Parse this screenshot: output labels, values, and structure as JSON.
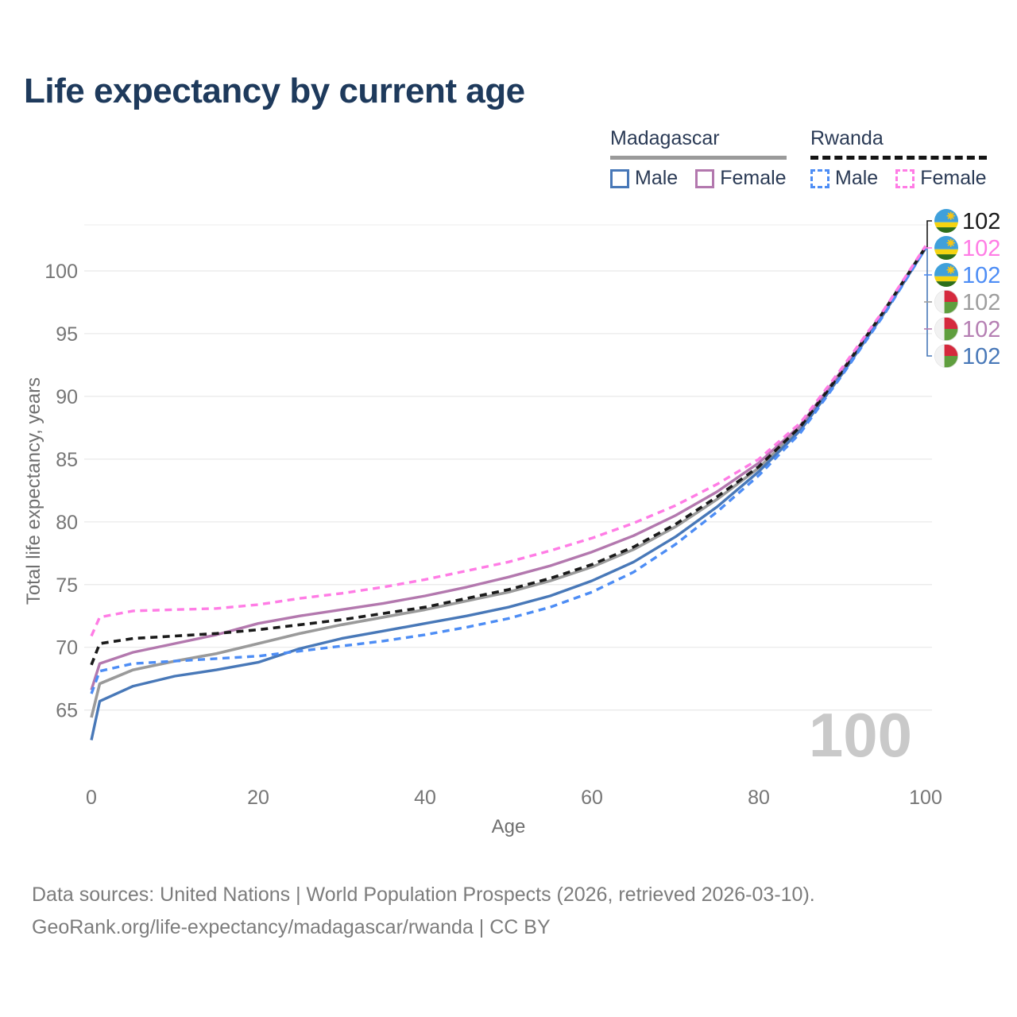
{
  "header": {
    "title": "Life expectancy by current age"
  },
  "legend": {
    "groups": [
      {
        "id": "madagascar",
        "label": "Madagascar",
        "line_style": "solid",
        "underline_color": "#9a9a9a",
        "items": [
          {
            "label": "Male",
            "color": "#4878b8",
            "dash": false
          },
          {
            "label": "Female",
            "color": "#b378ae",
            "dash": false
          }
        ]
      },
      {
        "id": "rwanda",
        "label": "Rwanda",
        "line_style": "dashed",
        "underline_color": "#141414",
        "items": [
          {
            "label": "Male",
            "color": "#4d8df5",
            "dash": true
          },
          {
            "label": "Female",
            "color": "#ff7ce5",
            "dash": true
          }
        ]
      }
    ]
  },
  "chart_data": {
    "type": "line",
    "title": "Life expectancy by current age",
    "xlabel": "Age",
    "ylabel": "Total life expectancy, years",
    "xlim": [
      0,
      100
    ],
    "ylim": [
      62,
      103.5
    ],
    "x_ticks": [
      0,
      20,
      40,
      60,
      80,
      100
    ],
    "y_ticks": [
      65,
      70,
      75,
      80,
      85,
      90,
      95,
      100
    ],
    "grid": "horizontal-only",
    "legend_position": "top-right",
    "age_counter": "100",
    "x": [
      0,
      1,
      5,
      10,
      15,
      20,
      25,
      30,
      35,
      40,
      45,
      50,
      55,
      60,
      65,
      70,
      75,
      80,
      85,
      90,
      95,
      100
    ],
    "series": [
      {
        "name": "Madagascar Total",
        "country": "madagascar",
        "sex": "total",
        "color": "#9a9a9a",
        "dash": false,
        "width": 3.6,
        "values": [
          64.4,
          67.1,
          68.2,
          68.9,
          69.5,
          70.3,
          71.1,
          71.8,
          72.4,
          73.0,
          73.7,
          74.4,
          75.3,
          76.4,
          77.8,
          79.6,
          81.8,
          84.3,
          87.5,
          92.0,
          96.7,
          101.9
        ],
        "end_label": {
          "text": "102",
          "row": 3,
          "label_color": "#9e9e9e"
        }
      },
      {
        "name": "Madagascar Female",
        "country": "madagascar",
        "sex": "female",
        "color": "#b378ae",
        "dash": false,
        "width": 3.4,
        "values": [
          66.6,
          68.7,
          69.6,
          70.3,
          71.0,
          71.9,
          72.5,
          73.0,
          73.5,
          74.1,
          74.8,
          75.6,
          76.5,
          77.6,
          78.9,
          80.5,
          82.4,
          84.7,
          87.7,
          92.1,
          96.8,
          101.9
        ],
        "end_label": {
          "text": "102",
          "row": 4,
          "label_color": "#b57fb3"
        }
      },
      {
        "name": "Madagascar Male",
        "country": "madagascar",
        "sex": "male",
        "color": "#4878b8",
        "dash": false,
        "width": 3.4,
        "values": [
          62.6,
          65.7,
          66.9,
          67.7,
          68.2,
          68.8,
          69.9,
          70.7,
          71.3,
          71.9,
          72.5,
          73.2,
          74.1,
          75.3,
          76.8,
          78.8,
          81.2,
          84.0,
          87.3,
          91.8,
          96.6,
          101.8
        ],
        "end_label": {
          "text": "102",
          "row": 5,
          "label_color": "#4878b8"
        }
      },
      {
        "name": "Rwanda Total",
        "country": "rwanda",
        "sex": "total",
        "color": "#1a1a1a",
        "dash": true,
        "width": 3.6,
        "values": [
          68.6,
          70.3,
          70.7,
          70.9,
          71.1,
          71.4,
          71.8,
          72.2,
          72.7,
          73.2,
          73.9,
          74.6,
          75.5,
          76.6,
          78.0,
          79.8,
          82.0,
          84.4,
          87.6,
          92.0,
          96.8,
          101.9
        ],
        "end_label": {
          "text": "102",
          "row": 0,
          "label_color": "#1a1a1a"
        }
      },
      {
        "name": "Rwanda Male",
        "country": "rwanda",
        "sex": "male",
        "color": "#4d8df5",
        "dash": true,
        "width": 3.4,
        "values": [
          66.3,
          68.1,
          68.7,
          68.9,
          69.1,
          69.3,
          69.7,
          70.1,
          70.5,
          71.0,
          71.6,
          72.3,
          73.2,
          74.4,
          76.0,
          78.2,
          80.8,
          83.7,
          87.1,
          91.7,
          96.5,
          101.8
        ],
        "end_label": {
          "text": "102",
          "row": 2,
          "label_color": "#4d8df5"
        }
      },
      {
        "name": "Rwanda Female",
        "country": "rwanda",
        "sex": "female",
        "color": "#ff7ce5",
        "dash": true,
        "width": 3.4,
        "values": [
          70.9,
          72.4,
          72.9,
          73.0,
          73.1,
          73.4,
          73.9,
          74.3,
          74.8,
          75.4,
          76.1,
          76.8,
          77.7,
          78.7,
          79.9,
          81.3,
          83.0,
          85.0,
          87.9,
          92.3,
          96.9,
          102.0
        ],
        "end_label": {
          "text": "102",
          "row": 1,
          "label_color": "#ff7ce5"
        }
      }
    ],
    "flag_colors": {
      "rwanda": {
        "blue": "#3fa0db",
        "yellow": "#f5d411",
        "green": "#2d6e1a",
        "sun": "#f9c513"
      },
      "madagascar": {
        "white": "#f2f2f2",
        "red": "#d5293d",
        "green": "#5f9e3e"
      }
    }
  },
  "footer": {
    "line1": "Data sources: United Nations | World Population Prospects (2026, retrieved 2026-03-10).",
    "line2": "GeoRank.org/life-expectancy/madagascar/rwanda | CC BY"
  }
}
